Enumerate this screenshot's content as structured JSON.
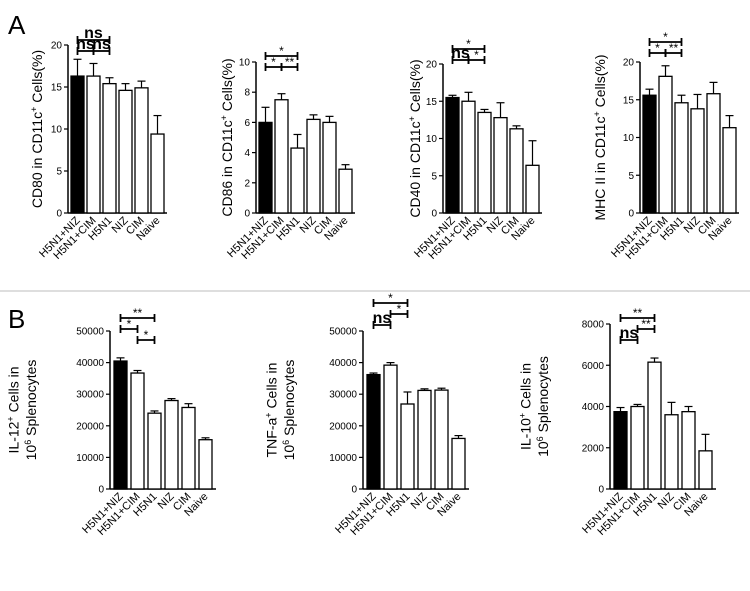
{
  "panel_labels": {
    "a": "A",
    "b": "B"
  },
  "styles": {
    "bar_dark": "#000000",
    "bar_light": "#ffffff",
    "stroke": "#000000",
    "divider": "#bdbdbd"
  },
  "chart_data": [
    {
      "panel": "A",
      "type": "bar",
      "ylabel": {
        "main": "CD80 in CD11c",
        "sup": "+",
        "tail": " Cells(%)"
      },
      "categories": [
        "H5N1+NIZ",
        "H5N1+CIM",
        "H5N1",
        "NIZ",
        "CIM",
        "Naive"
      ],
      "values": [
        16.3,
        16.3,
        15.4,
        14.6,
        14.9,
        9.4
      ],
      "errors": [
        2.0,
        1.5,
        0.7,
        0.8,
        0.8,
        2.2
      ],
      "fills": [
        "dark",
        "light",
        "light",
        "light",
        "light",
        "light"
      ],
      "ylim": [
        0,
        20
      ],
      "yticks": [
        0,
        5,
        10,
        15,
        20
      ],
      "ytick_labels": [
        "0",
        "5",
        "10",
        "15",
        "20"
      ],
      "significance": [
        {
          "from": 0,
          "to": 1,
          "label": "ns",
          "level": 2
        },
        {
          "from": 1,
          "to": 2,
          "label": "ns",
          "level": 2
        },
        {
          "from": 0,
          "to": 2,
          "label": "ns",
          "level": 1
        }
      ]
    },
    {
      "panel": "A",
      "type": "bar",
      "ylabel": {
        "main": "CD86 in CD11c",
        "sup": "+",
        "tail": " Cells(%)"
      },
      "categories": [
        "H5N1+NIZ",
        "H5N1+CIM",
        "H5N1",
        "NIZ",
        "CIM",
        "Naive"
      ],
      "values": [
        6.0,
        7.5,
        4.3,
        6.2,
        6.0,
        2.9
      ],
      "errors": [
        1.0,
        0.4,
        0.9,
        0.3,
        0.4,
        0.3
      ],
      "fills": [
        "dark",
        "light",
        "light",
        "light",
        "light",
        "light"
      ],
      "ylim": [
        0,
        10
      ],
      "yticks": [
        0,
        2,
        4,
        6,
        8,
        10
      ],
      "ytick_labels": [
        "0",
        "2",
        "4",
        "6",
        "8",
        "10"
      ],
      "significance": [
        {
          "from": 0,
          "to": 1,
          "label": "*",
          "level": 2
        },
        {
          "from": 1,
          "to": 2,
          "label": "**",
          "level": 2
        },
        {
          "from": 0,
          "to": 2,
          "label": "*",
          "level": 1
        }
      ]
    },
    {
      "panel": "A",
      "type": "bar",
      "ylabel": {
        "main": "CD40 in CD11c",
        "sup": "+",
        "tail": " Cells(%)"
      },
      "categories": [
        "H5N1+NIZ",
        "H5N1+CIM",
        "H5N1",
        "NIZ",
        "CIM",
        "Naive"
      ],
      "values": [
        15.5,
        15.0,
        13.5,
        12.8,
        11.3,
        6.4
      ],
      "errors": [
        0.3,
        1.2,
        0.4,
        2.0,
        0.4,
        3.3
      ],
      "fills": [
        "dark",
        "light",
        "light",
        "light",
        "light",
        "light"
      ],
      "ylim": [
        0,
        20
      ],
      "yticks": [
        0,
        5,
        10,
        15,
        20
      ],
      "ytick_labels": [
        "0",
        "5",
        "10",
        "15",
        "20"
      ],
      "significance": [
        {
          "from": 0,
          "to": 1,
          "label": "ns",
          "level": 2
        },
        {
          "from": 1,
          "to": 2,
          "label": "*",
          "level": 2
        },
        {
          "from": 0,
          "to": 2,
          "label": "*",
          "level": 1
        }
      ]
    },
    {
      "panel": "A",
      "type": "bar",
      "ylabel": {
        "main": "MHC II in CD11c",
        "sup": "+",
        "tail": " Cells(%)"
      },
      "categories": [
        "H5N1+NIZ",
        "H5N1+CIM",
        "H5N1",
        "NIZ",
        "CIM",
        "Naive"
      ],
      "values": [
        15.6,
        18.1,
        14.6,
        13.8,
        15.8,
        11.3
      ],
      "errors": [
        0.8,
        1.4,
        1.0,
        1.9,
        1.5,
        1.6
      ],
      "fills": [
        "dark",
        "light",
        "light",
        "light",
        "light",
        "light"
      ],
      "ylim": [
        0,
        20
      ],
      "yticks": [
        0,
        5,
        10,
        15,
        20
      ],
      "ytick_labels": [
        "0",
        "5",
        "10",
        "15",
        "20"
      ],
      "significance": [
        {
          "from": 0,
          "to": 1,
          "label": "*",
          "level": 2
        },
        {
          "from": 1,
          "to": 2,
          "label": "**",
          "level": 2
        },
        {
          "from": 0,
          "to": 2,
          "label": "*",
          "level": 1
        }
      ]
    },
    {
      "panel": "B",
      "type": "bar",
      "ylabel": {
        "main": "IL-12",
        "sup": "+",
        "tail": " Cells in",
        "line2": "10",
        "sup2": "6",
        "tail2": " Splenocytes"
      },
      "categories": [
        "H5N1+NIZ",
        "H5N1+CIM",
        "H5N1",
        "NIZ",
        "CIM",
        "Naive"
      ],
      "values": [
        40500,
        36700,
        24000,
        28000,
        25800,
        15600
      ],
      "errors": [
        1000,
        800,
        700,
        600,
        1200,
        600
      ],
      "fills": [
        "dark",
        "light",
        "light",
        "light",
        "light",
        "light"
      ],
      "ylim": [
        0,
        50000
      ],
      "yticks": [
        0,
        10000,
        20000,
        30000,
        40000,
        50000
      ],
      "ytick_labels": [
        "0",
        "10000",
        "20000",
        "30000",
        "40000",
        "50000"
      ],
      "significance": [
        {
          "from": 0,
          "to": 1,
          "label": "*",
          "level": 2
        },
        {
          "from": 1,
          "to": 2,
          "label": "*",
          "level": 3
        },
        {
          "from": 0,
          "to": 2,
          "label": "**",
          "level": 1
        }
      ]
    },
    {
      "panel": "B",
      "type": "bar",
      "ylabel": {
        "main": "TNF-a",
        "sup": "+",
        "tail": " Cells in",
        "line2": "10",
        "sup2": "6",
        "tail2": " Splenocytes"
      },
      "categories": [
        "H5N1+NIZ",
        "H5N1+CIM",
        "H5N1",
        "NIZ",
        "CIM",
        "Naive"
      ],
      "values": [
        36200,
        39200,
        26900,
        31200,
        31300,
        16000
      ],
      "errors": [
        500,
        800,
        3800,
        500,
        600,
        900
      ],
      "fills": [
        "dark",
        "light",
        "light",
        "light",
        "light",
        "light"
      ],
      "ylim": [
        0,
        50000
      ],
      "yticks": [
        0,
        10000,
        20000,
        30000,
        40000,
        50000
      ],
      "ytick_labels": [
        "0",
        "10000",
        "20000",
        "30000",
        "40000",
        "50000"
      ],
      "significance": [
        {
          "from": 0,
          "to": 1,
          "label": "ns",
          "level": 3
        },
        {
          "from": 1,
          "to": 2,
          "label": "*",
          "level": 2
        },
        {
          "from": 0,
          "to": 2,
          "label": "*",
          "level": 1
        }
      ]
    },
    {
      "panel": "B",
      "type": "bar",
      "ylabel": {
        "main": "IL-10",
        "sup": "+",
        "tail": " Cells in",
        "line2": "10",
        "sup2": "6",
        "tail2": " Splenocytes"
      },
      "categories": [
        "H5N1+NIZ",
        "H5N1+CIM",
        "H5N1",
        "NIZ",
        "CIM",
        "Naive"
      ],
      "values": [
        3750,
        4000,
        6150,
        3600,
        3750,
        1850
      ],
      "errors": [
        200,
        100,
        200,
        600,
        250,
        800
      ],
      "fills": [
        "dark",
        "light",
        "light",
        "light",
        "light",
        "light"
      ],
      "ylim": [
        0,
        8000
      ],
      "yticks": [
        0,
        2000,
        4000,
        6000,
        8000
      ],
      "ytick_labels": [
        "0",
        "2000",
        "4000",
        "6000",
        "8000"
      ],
      "significance": [
        {
          "from": 0,
          "to": 1,
          "label": "ns",
          "level": 3
        },
        {
          "from": 1,
          "to": 2,
          "label": "**",
          "level": 2
        },
        {
          "from": 0,
          "to": 2,
          "label": "**",
          "level": 1
        }
      ]
    }
  ]
}
